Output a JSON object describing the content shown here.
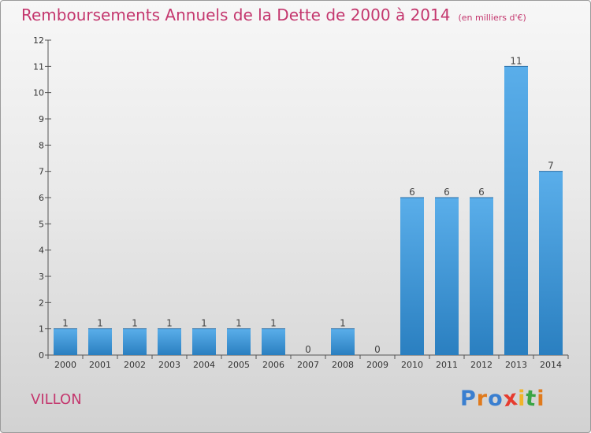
{
  "title": "Remboursements Annuels de la Dette de 2000 à 2014",
  "unit": "(en milliers d'€)",
  "commune": "VILLON",
  "logo": "Proxiti",
  "colors": {
    "title": "#c4376e",
    "bar_top": "#5aaeea",
    "bar_bottom": "#2a7fc0"
  },
  "chart_data": {
    "type": "bar",
    "categories": [
      "2000",
      "2001",
      "2002",
      "2003",
      "2004",
      "2005",
      "2006",
      "2007",
      "2008",
      "2009",
      "2010",
      "2011",
      "2012",
      "2013",
      "2014"
    ],
    "values": [
      1,
      1,
      1,
      1,
      1,
      1,
      1,
      0,
      1,
      0,
      6,
      6,
      6,
      11,
      7
    ],
    "title": "Remboursements Annuels de la Dette de 2000 à 2014",
    "xlabel": "",
    "ylabel": "",
    "ylim": [
      0,
      12
    ],
    "yticks": [
      0,
      1,
      2,
      3,
      4,
      5,
      6,
      7,
      8,
      9,
      10,
      11,
      12
    ],
    "grid": false,
    "data_labels": true
  }
}
